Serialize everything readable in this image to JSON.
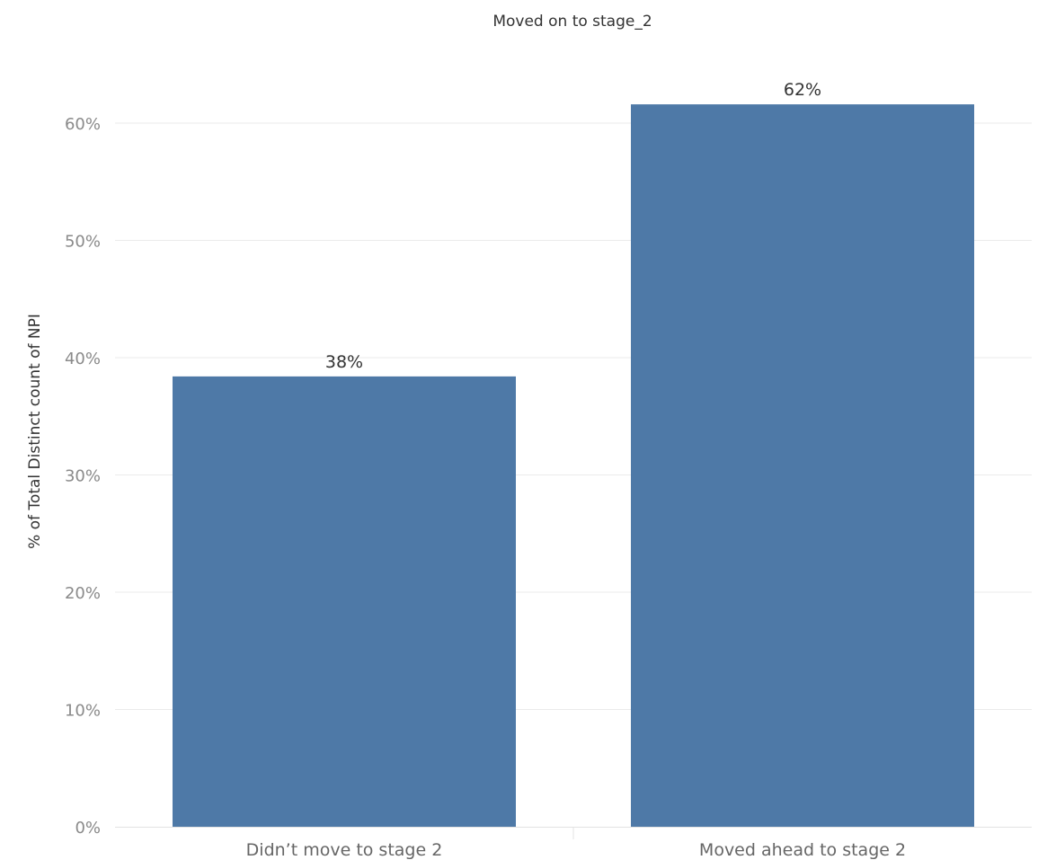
{
  "chart_data": {
    "type": "bar",
    "title": "Moved on to stage_2",
    "ylabel": "% of Total Distinct count of NPI",
    "xlabel": "",
    "categories": [
      "Didn’t move to stage 2",
      "Moved ahead to stage 2"
    ],
    "values": [
      38.4,
      61.6
    ],
    "value_labels": [
      "38%",
      "62%"
    ],
    "ylim": [
      0,
      70
    ],
    "yticks": [
      0,
      10,
      20,
      30,
      40,
      50,
      60
    ],
    "ytick_labels": [
      "0%",
      "10%",
      "20%",
      "30%",
      "40%",
      "50%",
      "60%"
    ],
    "grid": true,
    "bar_color": "#4e79a7"
  }
}
